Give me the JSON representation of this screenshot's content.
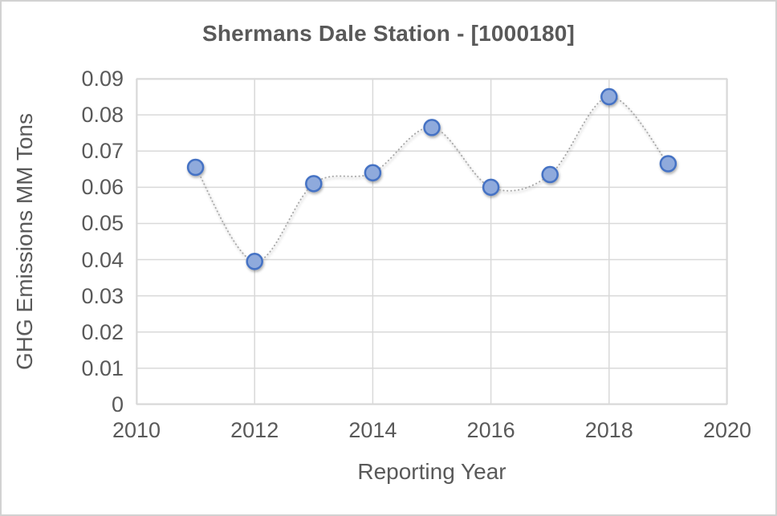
{
  "window": {
    "background_color": "#FFFFFF",
    "border_color": "#D2D2D2"
  },
  "chart_data": {
    "type": "scatter",
    "title": "Shermans Dale Station - [1000180]",
    "xlabel": "Reporting Year",
    "ylabel": "GHG Emissions MM Tons",
    "x": [
      2011,
      2012,
      2013,
      2014,
      2015,
      2016,
      2017,
      2018,
      2019
    ],
    "y": [
      0.0655,
      0.0395,
      0.061,
      0.064,
      0.0765,
      0.06,
      0.0635,
      0.085,
      0.0665
    ],
    "xlim": [
      2010,
      2020
    ],
    "ylim": [
      0,
      0.09
    ],
    "xticks": [
      2010,
      2012,
      2014,
      2016,
      2018,
      2020
    ],
    "yticks": [
      0,
      0.01,
      0.02,
      0.03,
      0.04,
      0.05,
      0.06,
      0.07,
      0.08,
      0.09
    ],
    "grid": true,
    "legend": "none",
    "line": {
      "style": "dotted",
      "smooth": true,
      "color": "#A6A6A6"
    },
    "marker": {
      "shape": "circle",
      "fill": "#8FAADC",
      "stroke": "#4472C4",
      "radius": 9.5
    },
    "colors": {
      "grid": "#D9D9D9",
      "plot_border": "#D9D9D9",
      "text": "#595959",
      "title": "#595959"
    }
  }
}
